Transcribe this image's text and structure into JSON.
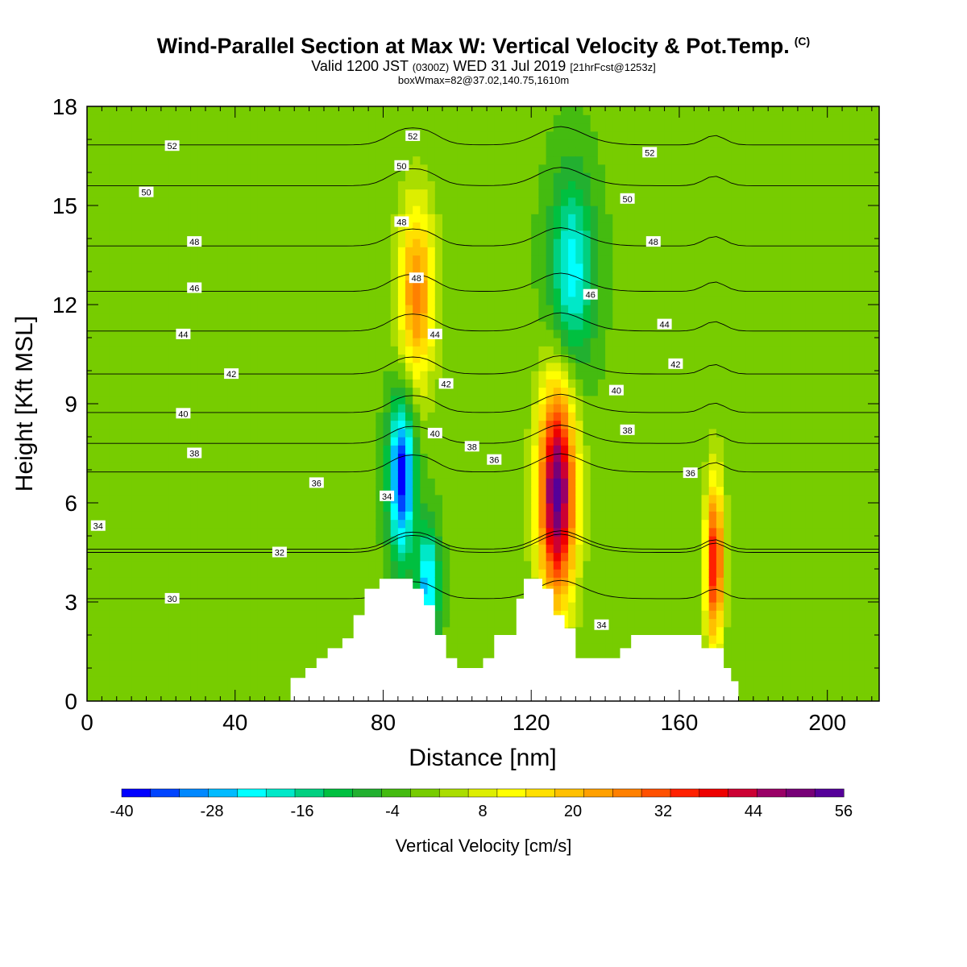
{
  "title": {
    "main": "Wind-Parallel Section at Max W: Vertical Velocity & Pot.Temp.",
    "copyright": "(C)",
    "valid_prefix": "Valid 1200 JST",
    "valid_utc": "(0300Z)",
    "valid_date": "WED 31 Jul 2019",
    "forecast": "[21hrFcst@1253z]",
    "box_info": "boxWmax=82@37.02,140.75,1610m"
  },
  "chart_data": {
    "type": "heatmap",
    "xlabel": "Distance [nm]",
    "ylabel": "Height [Kft MSL]",
    "xlim": [
      0,
      214
    ],
    "ylim": [
      0,
      18
    ],
    "xticks": [
      0,
      40,
      80,
      120,
      160,
      200
    ],
    "yticks": [
      0,
      3,
      6,
      9,
      12,
      15,
      18
    ],
    "colorbar": {
      "label": "Vertical Velocity [cm/s]",
      "min": -40,
      "max": 56,
      "step": 4,
      "tick_labels": [
        "-40",
        "-28",
        "-16",
        "-4",
        "8",
        "20",
        "32",
        "44",
        "56"
      ],
      "colors": [
        "#0000ff",
        "#0044ff",
        "#0088ff",
        "#00bbff",
        "#00ffff",
        "#00e8c8",
        "#00d080",
        "#00c040",
        "#22b030",
        "#44bb10",
        "#77cc00",
        "#aadd00",
        "#ddee00",
        "#ffff00",
        "#ffe000",
        "#ffc000",
        "#ffa000",
        "#ff8000",
        "#ff5000",
        "#ff2000",
        "#ee0000",
        "#cc0033",
        "#990066",
        "#770077",
        "#550099"
      ]
    },
    "contours_label": "Potential temperature",
    "contour_labels": [
      {
        "text": "52",
        "x": 23,
        "y": 16.8
      },
      {
        "text": "50",
        "x": 16,
        "y": 15.4
      },
      {
        "text": "48",
        "x": 29,
        "y": 13.9
      },
      {
        "text": "46",
        "x": 29,
        "y": 12.5
      },
      {
        "text": "44",
        "x": 26,
        "y": 11.1
      },
      {
        "text": "42",
        "x": 39,
        "y": 9.9
      },
      {
        "text": "40",
        "x": 26,
        "y": 8.7
      },
      {
        "text": "38",
        "x": 29,
        "y": 7.5
      },
      {
        "text": "36",
        "x": 62,
        "y": 6.6
      },
      {
        "text": "34",
        "x": 3,
        "y": 5.3
      },
      {
        "text": "32",
        "x": 52,
        "y": 4.5
      },
      {
        "text": "30",
        "x": 23,
        "y": 3.1
      },
      {
        "text": "52",
        "x": 88,
        "y": 17.1
      },
      {
        "text": "50",
        "x": 85,
        "y": 16.2
      },
      {
        "text": "48",
        "x": 85,
        "y": 14.5
      },
      {
        "text": "48",
        "x": 89,
        "y": 12.8
      },
      {
        "text": "44",
        "x": 94,
        "y": 11.1
      },
      {
        "text": "42",
        "x": 97,
        "y": 9.6
      },
      {
        "text": "40",
        "x": 94,
        "y": 8.1
      },
      {
        "text": "38",
        "x": 104,
        "y": 7.7
      },
      {
        "text": "36",
        "x": 110,
        "y": 7.3
      },
      {
        "text": "34",
        "x": 81,
        "y": 6.2
      },
      {
        "text": "52",
        "x": 152,
        "y": 16.6
      },
      {
        "text": "50",
        "x": 146,
        "y": 15.2
      },
      {
        "text": "48",
        "x": 153,
        "y": 13.9
      },
      {
        "text": "46",
        "x": 136,
        "y": 12.3
      },
      {
        "text": "44",
        "x": 156,
        "y": 11.4
      },
      {
        "text": "42",
        "x": 159,
        "y": 10.2
      },
      {
        "text": "40",
        "x": 143,
        "y": 9.4
      },
      {
        "text": "38",
        "x": 146,
        "y": 8.2
      },
      {
        "text": "36",
        "x": 163,
        "y": 6.9
      },
      {
        "text": "34",
        "x": 139,
        "y": 2.3
      }
    ],
    "terrain_profile": [
      [
        0,
        0
      ],
      [
        55,
        0
      ],
      [
        55,
        0.7
      ],
      [
        59,
        0.7
      ],
      [
        59,
        1
      ],
      [
        62,
        1
      ],
      [
        62,
        1.3
      ],
      [
        65,
        1.3
      ],
      [
        65,
        1.6
      ],
      [
        69,
        1.6
      ],
      [
        69,
        1.9
      ],
      [
        72,
        1.9
      ],
      [
        72,
        2.6
      ],
      [
        75,
        2.6
      ],
      [
        75,
        3.4
      ],
      [
        79,
        3.4
      ],
      [
        79,
        3.7
      ],
      [
        88,
        3.7
      ],
      [
        88,
        3.4
      ],
      [
        91,
        3.4
      ],
      [
        91,
        2.9
      ],
      [
        94,
        2.9
      ],
      [
        94,
        2
      ],
      [
        97,
        2
      ],
      [
        97,
        1.3
      ],
      [
        100,
        1.3
      ],
      [
        100,
        1
      ],
      [
        107,
        1
      ],
      [
        107,
        1.3
      ],
      [
        110,
        1.3
      ],
      [
        110,
        2
      ],
      [
        116,
        2
      ],
      [
        116,
        3.1
      ],
      [
        118,
        3.1
      ],
      [
        118,
        3.7
      ],
      [
        123,
        3.7
      ],
      [
        123,
        3.4
      ],
      [
        126,
        3.4
      ],
      [
        126,
        2.6
      ],
      [
        129,
        2.6
      ],
      [
        129,
        2.2
      ],
      [
        132,
        2.2
      ],
      [
        132,
        1.3
      ],
      [
        144,
        1.3
      ],
      [
        144,
        1.6
      ],
      [
        147,
        1.6
      ],
      [
        147,
        2
      ],
      [
        166,
        2
      ],
      [
        166,
        1.6
      ],
      [
        172,
        1.6
      ],
      [
        172,
        1
      ],
      [
        174,
        1
      ],
      [
        174,
        0.6
      ],
      [
        176,
        0.6
      ],
      [
        176,
        0
      ],
      [
        214,
        0
      ]
    ],
    "features": [
      {
        "kind": "updraft",
        "peak_w": 56,
        "x": 127,
        "z": 6.3,
        "half_width_nm": 5,
        "depth_kft": 3.3
      },
      {
        "kind": "updraft",
        "peak_w": 40,
        "x": 169.5,
        "z": 4.2,
        "half_width_nm": 2.5,
        "depth_kft": 2.5
      },
      {
        "kind": "updraft",
        "peak_w": 28,
        "x": 89,
        "z": 12.3,
        "half_width_nm": 5,
        "depth_kft": 2.8
      },
      {
        "kind": "downdraft",
        "peak_w": -40,
        "x": 85,
        "z": 6.8,
        "half_width_nm": 3.5,
        "depth_kft": 2.4
      },
      {
        "kind": "downdraft",
        "peak_w": -28,
        "x": 92,
        "z": 3.5,
        "half_width_nm": 3,
        "depth_kft": 1.8
      },
      {
        "kind": "downdraft",
        "peak_w": -24,
        "x": 131,
        "z": 13.0,
        "half_width_nm": 6,
        "depth_kft": 2.8
      }
    ]
  }
}
